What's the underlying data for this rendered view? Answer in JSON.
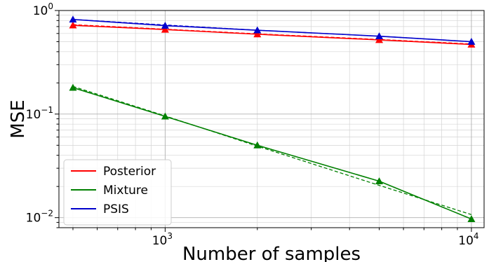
{
  "chart_data": {
    "type": "line",
    "title": "",
    "xlabel": "Number of samples",
    "ylabel": "MSE",
    "xscale": "log",
    "yscale": "log",
    "xlim": [
      450,
      11000
    ],
    "ylim": [
      0.008,
      1.0
    ],
    "x_ticks": [
      1000,
      10000
    ],
    "y_ticks": [
      0.01,
      0.1,
      1.0
    ],
    "x_tick_labels": [
      {
        "base": "10",
        "exp": "3"
      },
      {
        "base": "10",
        "exp": "4"
      }
    ],
    "y_tick_labels": [
      {
        "base": "10",
        "exp": "−2"
      },
      {
        "base": "10",
        "exp": "−1"
      },
      {
        "base": "10",
        "exp": "0"
      }
    ],
    "grid": true,
    "legend_position": "lower-left",
    "x": [
      500,
      1000,
      2000,
      5000,
      10000
    ],
    "series": [
      {
        "name": "Posterior",
        "color": "#ff0000",
        "marker": "triangle",
        "values": [
          0.72,
          0.655,
          0.59,
          0.52,
          0.47
        ],
        "fit": [
          0.73,
          0.66,
          0.595,
          0.525,
          0.475
        ]
      },
      {
        "name": "Mixture",
        "color": "#008000",
        "marker": "triangle",
        "values": [
          0.18,
          0.095,
          0.05,
          0.0225,
          0.0097
        ],
        "fit": [
          0.185,
          0.096,
          0.049,
          0.0205,
          0.0107
        ]
      },
      {
        "name": "PSIS",
        "color": "#0000cc",
        "marker": "triangle",
        "values": [
          0.82,
          0.715,
          0.645,
          0.565,
          0.5
        ],
        "fit": [
          0.82,
          0.725,
          0.645,
          0.565,
          0.5
        ]
      }
    ]
  }
}
